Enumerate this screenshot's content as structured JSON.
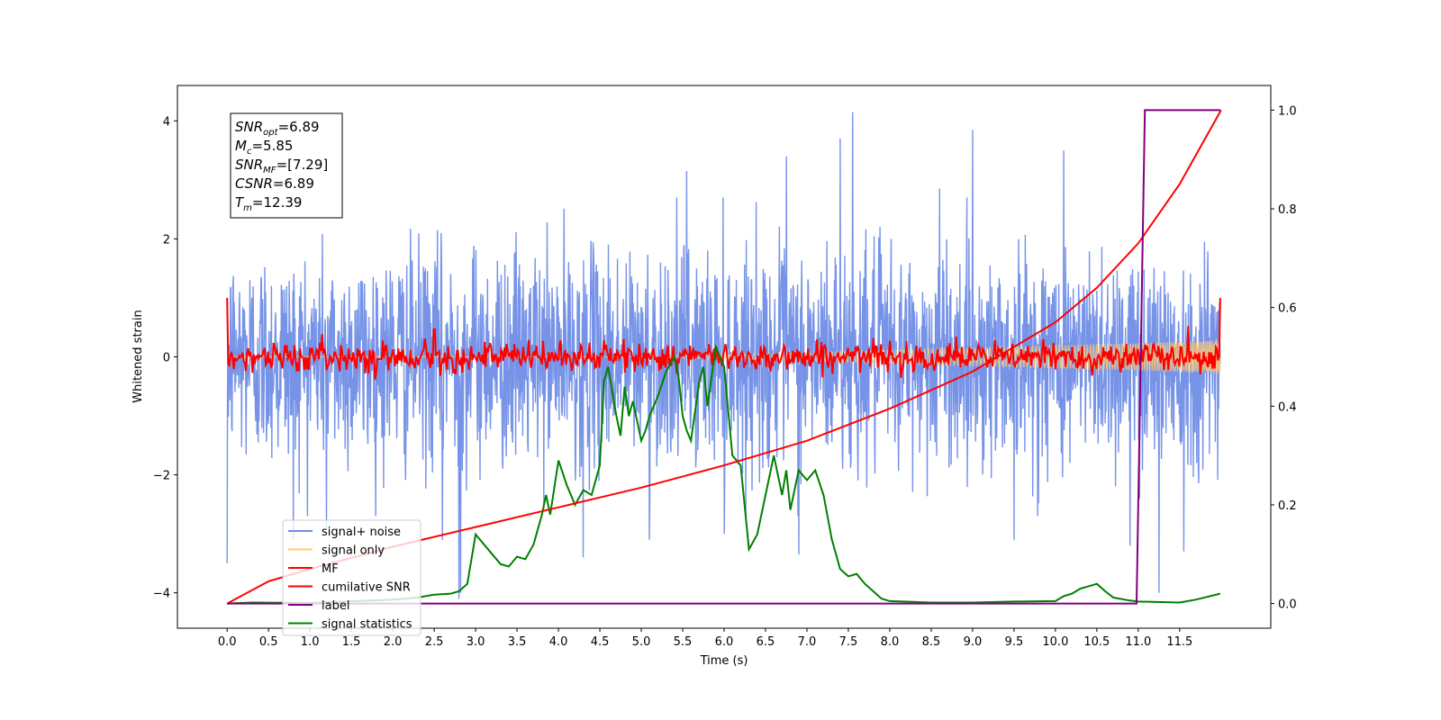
{
  "chart_data": {
    "type": "line",
    "xlabel": "Time (s)",
    "ylabel": "Whitened strain",
    "xlim": [
      -0.6,
      12.6
    ],
    "ylim": [
      -4.6,
      4.6
    ],
    "y2lim": [
      -0.05,
      1.05
    ],
    "x_ticks": [
      "0.0",
      "0.5",
      "1.0",
      "1.5",
      "2.0",
      "2.5",
      "3.0",
      "3.5",
      "4.0",
      "4.5",
      "5.0",
      "5.5",
      "6.0",
      "6.5",
      "7.0",
      "7.5",
      "8.0",
      "8.5",
      "9.0",
      "9.5",
      "10.0",
      "10.5",
      "11.0",
      "11.5"
    ],
    "x_tick_values": [
      0,
      0.5,
      1,
      1.5,
      2,
      2.5,
      3,
      3.5,
      4,
      4.5,
      5,
      5.5,
      6,
      6.5,
      7,
      7.5,
      8,
      8.5,
      9,
      9.5,
      10,
      10.5,
      11,
      11.5
    ],
    "y_ticks": [
      "4",
      "2",
      "0",
      "−2",
      "−4"
    ],
    "y_tick_values": [
      4,
      2,
      0,
      -2,
      -4
    ],
    "y2_ticks": [
      "1.0",
      "0.8",
      "0.6",
      "0.4",
      "0.2",
      "0.0"
    ],
    "y2_tick_values": [
      1,
      0.8,
      0.6,
      0.4,
      0.2,
      0
    ],
    "annotation": [
      {
        "main": "SNR",
        "sub": "opt",
        "value": "=6.89"
      },
      {
        "main": "M",
        "sub": "c",
        "value": "=5.85"
      },
      {
        "main": "SNR",
        "sub": "MF",
        "value": "=[7.29]"
      },
      {
        "main": "CSNR",
        "sub": "",
        "value": "=6.89"
      },
      {
        "main": "T",
        "sub": "m",
        "value": "=12.39"
      }
    ],
    "legend": {
      "placement": "lower-left",
      "entries": [
        {
          "label": "signal+ noise",
          "color": "#6f8de6"
        },
        {
          "label": "signal only",
          "color": "#ffc870"
        },
        {
          "label": "MF",
          "color": "#ff0000"
        },
        {
          "label": "cumilative SNR",
          "color": "#ff0000"
        },
        {
          "label": "label",
          "color": "#800080"
        },
        {
          "label": "signal statistics",
          "color": "#008000"
        }
      ]
    },
    "series": [
      {
        "name": "signal+ noise",
        "axis": "left",
        "color": "#6f8de6",
        "note": "white noise around 0, sd ~0.9, t 0-11.99",
        "spikes": [
          [
            0,
            -3.5
          ],
          [
            0.8,
            -3.1
          ],
          [
            1.2,
            -2.9
          ],
          [
            2.6,
            -3.1
          ],
          [
            2.8,
            -4.1
          ],
          [
            2.82,
            -4.0
          ],
          [
            4.3,
            -3.4
          ],
          [
            5.1,
            -3.1
          ],
          [
            5.55,
            3.15
          ],
          [
            6.0,
            -3.0
          ],
          [
            6.75,
            3.4
          ],
          [
            6.9,
            -3.35
          ],
          [
            7.4,
            3.7
          ],
          [
            7.55,
            4.15
          ],
          [
            8.6,
            2.85
          ],
          [
            9.0,
            3.85
          ],
          [
            9.5,
            -3.1
          ],
          [
            10.1,
            3.5
          ],
          [
            10.9,
            -3.2
          ],
          [
            11.25,
            -4.0
          ],
          [
            11.55,
            -3.3
          ]
        ]
      },
      {
        "name": "signal only",
        "axis": "left",
        "color": "#ffc870",
        "note": "chirp with amplitude growing from ~0 to ~0.28, starting near t=5"
      },
      {
        "name": "MF",
        "axis": "left",
        "color": "#ff0000",
        "note": "noise around 0, sd ~0.12, 1.0 at t=0 and t=12"
      },
      {
        "name": "cumilative SNR",
        "axis": "right",
        "x": [
          0,
          0.5,
          1,
          2,
          3,
          4,
          5,
          6,
          7,
          8,
          9,
          10,
          10.5,
          11,
          11.5,
          12
        ],
        "y": [
          0,
          0.045,
          0.07,
          0.115,
          0.155,
          0.195,
          0.235,
          0.28,
          0.33,
          0.395,
          0.47,
          0.57,
          0.64,
          0.73,
          0.85,
          1.0
        ]
      },
      {
        "name": "label",
        "axis": "right",
        "x": [
          0,
          10.98,
          11.08,
          11.99
        ],
        "y": [
          0,
          0,
          1,
          1
        ]
      },
      {
        "name": "signal statistics",
        "axis": "right",
        "x": [
          0,
          0.3,
          1,
          2,
          2.3,
          2.5,
          2.7,
          2.8,
          2.9,
          3.0,
          3.1,
          3.2,
          3.3,
          3.4,
          3.5,
          3.6,
          3.7,
          3.8,
          3.85,
          3.9,
          4.0,
          4.1,
          4.2,
          4.3,
          4.4,
          4.5,
          4.55,
          4.6,
          4.7,
          4.75,
          4.8,
          4.85,
          4.9,
          5.0,
          5.05,
          5.1,
          5.15,
          5.2,
          5.3,
          5.4,
          5.45,
          5.5,
          5.55,
          5.6,
          5.7,
          5.75,
          5.8,
          5.9,
          6.0,
          6.1,
          6.2,
          6.3,
          6.4,
          6.5,
          6.6,
          6.7,
          6.75,
          6.8,
          6.9,
          7.0,
          7.1,
          7.2,
          7.3,
          7.4,
          7.5,
          7.6,
          7.7,
          7.8,
          7.9,
          8.0,
          8.5,
          9.0,
          9.5,
          10.0,
          10.1,
          10.2,
          10.3,
          10.4,
          10.5,
          10.6,
          10.7,
          10.9,
          11.0,
          11.5,
          11.7,
          11.99
        ],
        "y": [
          0,
          0.002,
          0.001,
          0.008,
          0.012,
          0.018,
          0.02,
          0.025,
          0.04,
          0.14,
          0.12,
          0.1,
          0.08,
          0.075,
          0.095,
          0.09,
          0.12,
          0.18,
          0.22,
          0.18,
          0.29,
          0.24,
          0.2,
          0.23,
          0.22,
          0.28,
          0.45,
          0.48,
          0.38,
          0.34,
          0.44,
          0.38,
          0.41,
          0.33,
          0.35,
          0.38,
          0.4,
          0.42,
          0.47,
          0.5,
          0.46,
          0.38,
          0.35,
          0.33,
          0.45,
          0.48,
          0.4,
          0.52,
          0.48,
          0.3,
          0.28,
          0.11,
          0.14,
          0.22,
          0.3,
          0.22,
          0.27,
          0.19,
          0.27,
          0.25,
          0.27,
          0.22,
          0.13,
          0.07,
          0.055,
          0.06,
          0.04,
          0.025,
          0.01,
          0.005,
          0.002,
          0.002,
          0.004,
          0.005,
          0.015,
          0.02,
          0.03,
          0.035,
          0.04,
          0.025,
          0.012,
          0.006,
          0.004,
          0.002,
          0.008,
          0.02
        ]
      }
    ]
  }
}
